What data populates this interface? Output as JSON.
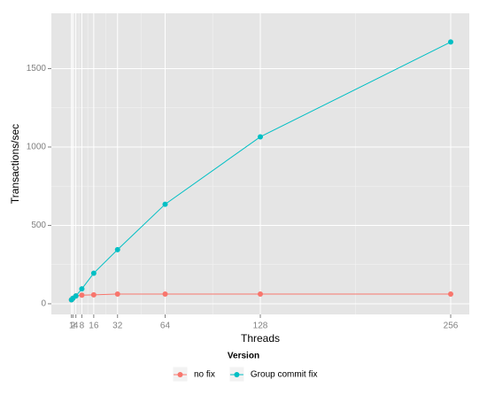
{
  "chart_data": {
    "type": "line",
    "x_label": "Threads",
    "y_label": "Transactions/sec",
    "legend_title": "Version",
    "legend_position": "bottom",
    "x": [
      1,
      2,
      4,
      8,
      16,
      32,
      64,
      128,
      256
    ],
    "series": [
      {
        "name": "no fix",
        "color": "#F8766D",
        "values": [
          25,
          35,
          50,
          55,
          57,
          62,
          62,
          62,
          62
        ]
      },
      {
        "name": "Group commit fix",
        "color": "#00BFC4",
        "values": [
          25,
          35,
          50,
          95,
          195,
          345,
          635,
          1065,
          1670
        ]
      }
    ],
    "xlim": [
      -12.5,
      268.5
    ],
    "xticks": [
      1,
      2,
      4,
      8,
      16,
      32,
      64,
      128,
      256
    ],
    "xminorticks": [
      1.5,
      3,
      6,
      12,
      24,
      48,
      96,
      192
    ],
    "ylim": [
      -68,
      1853
    ],
    "yticks": [
      0,
      500,
      1000,
      1500
    ],
    "yminorticks": [
      250,
      750,
      1250
    ],
    "grid": true
  }
}
